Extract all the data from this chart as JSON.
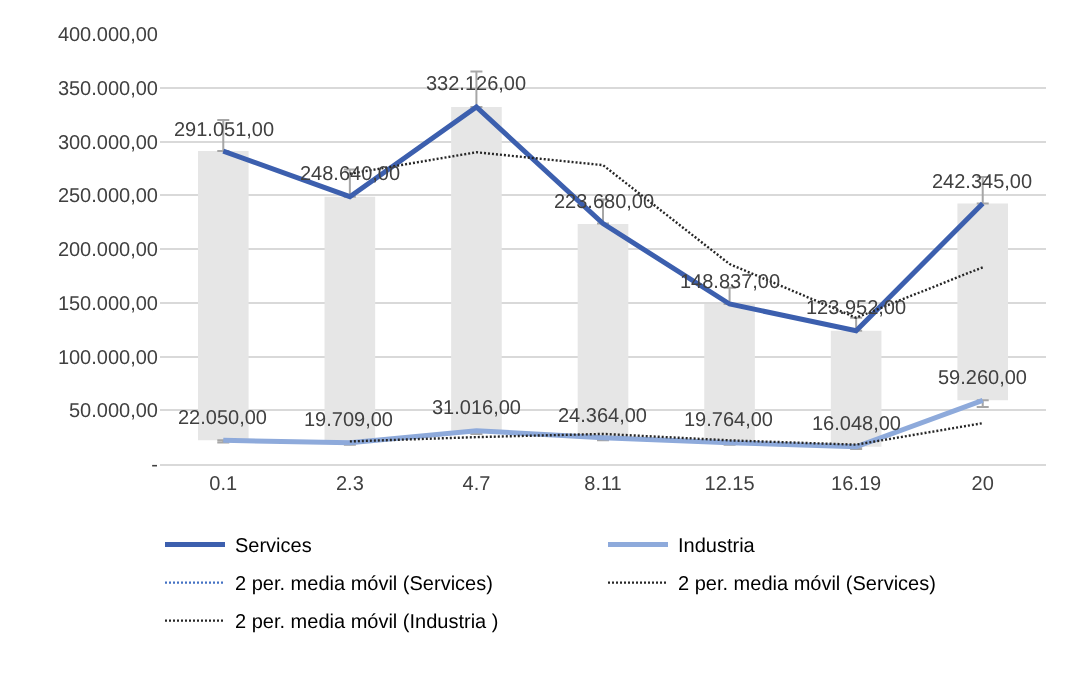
{
  "chart_data": {
    "type": "line",
    "categories": [
      "0.1",
      "2.3",
      "4.7",
      "8.11",
      "12.15",
      "16.19",
      "20"
    ],
    "series": [
      {
        "type": "bar",
        "color": "#e6e6e6",
        "base": [
          22050,
          19709,
          31016,
          24364,
          19764,
          16048,
          59260
        ],
        "values": [
          269000,
          229000,
          301000,
          199000,
          129000,
          108000,
          183000
        ]
      },
      {
        "name": "Services",
        "color": "#3c5fae",
        "values": [
          291051,
          248640,
          332126,
          223680,
          148837,
          123952,
          242345
        ],
        "value_labels": [
          "291.051,00",
          "248.640,00",
          "332.126,00",
          "223.680,00",
          "148.837,00",
          "123.952,00",
          "242.345,00"
        ],
        "errors": [
          [
            291051,
            320000
          ],
          [
            248640,
            274000
          ],
          [
            332126,
            365000
          ],
          [
            223680,
            246000
          ],
          [
            148837,
            164000
          ],
          [
            123952,
            136000
          ],
          [
            242345,
            267000
          ]
        ]
      },
      {
        "name": "Industria",
        "color": "#8eaadb",
        "values": [
          22050,
          19709,
          31016,
          24364,
          19764,
          16048,
          59260
        ],
        "value_labels": [
          "22.050,00",
          "19.709,00",
          "31.016,00",
          "24.364,00",
          "19.764,00",
          "16.048,00",
          "59.260,00"
        ],
        "errors": [
          [
            20000,
            22050
          ],
          [
            18000,
            19709
          ],
          [
            28000,
            31016
          ],
          [
            22000,
            24364
          ],
          [
            18000,
            19764
          ],
          [
            14000,
            16048
          ],
          [
            53000,
            59260
          ]
        ]
      },
      {
        "name": "2 per. media móvil (Services)",
        "color": "#4472c4",
        "line_style": "dotted",
        "values": [
          null,
          null,
          null,
          null,
          null,
          null,
          null
        ]
      },
      {
        "name": "2 per. media móvil (Services)",
        "color": "#262626",
        "line_style": "dotted",
        "values": [
          null,
          270000,
          290000,
          278000,
          186000,
          136000,
          183000
        ]
      },
      {
        "name": "2 per. media móvil (Industria )",
        "color": "#262626",
        "line_style": "dotted",
        "values": [
          null,
          21000,
          25000,
          28000,
          22000,
          18000,
          38000
        ]
      }
    ],
    "ylim": [
      0,
      400000
    ],
    "yticks": [
      {
        "value": 0,
        "label": "-"
      },
      {
        "value": 50000,
        "label": "50.000,00"
      },
      {
        "value": 100000,
        "label": "100.000,00"
      },
      {
        "value": 150000,
        "label": "150.000,00"
      },
      {
        "value": 200000,
        "label": "200.000,00"
      },
      {
        "value": 250000,
        "label": "250.000,00"
      },
      {
        "value": 300000,
        "label": "300.000,00"
      },
      {
        "value": 350000,
        "label": "350.000,00"
      },
      {
        "value": 400000,
        "label": "400.000,00"
      }
    ],
    "grid": "y",
    "legend": "bottom",
    "marker": "none"
  }
}
